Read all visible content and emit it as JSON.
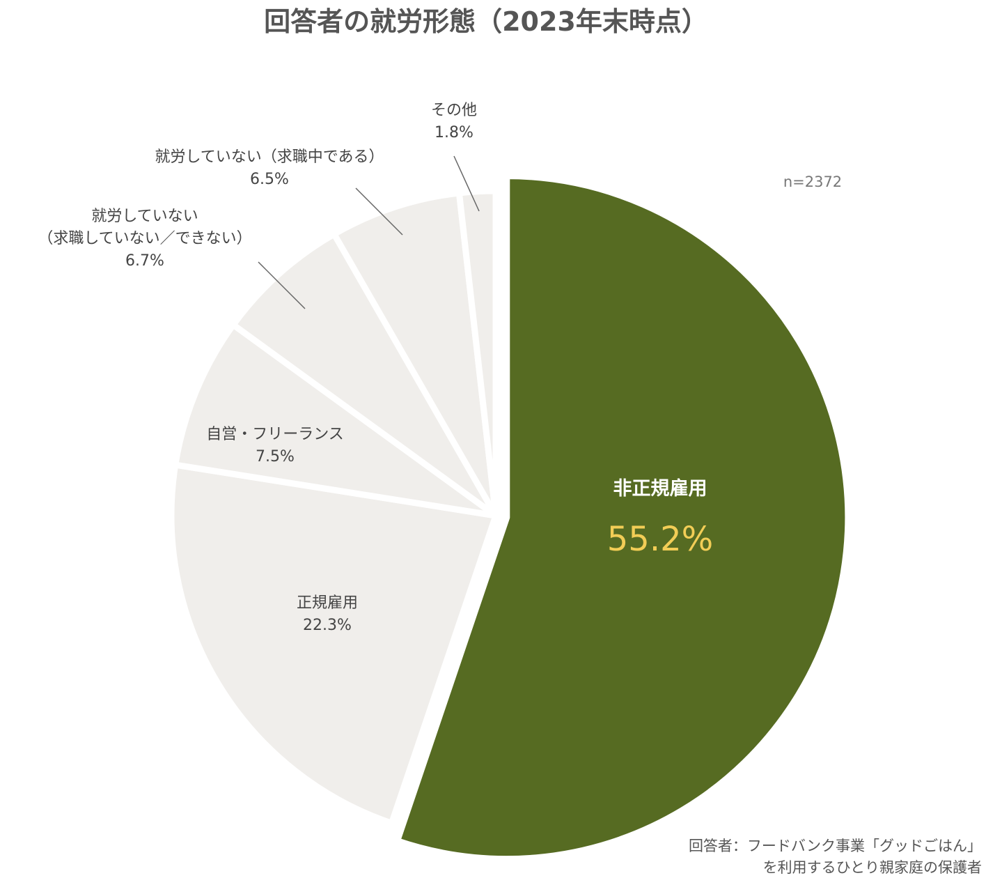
{
  "chart_data": {
    "type": "pie",
    "title": "回答者の就労形態（2023年末時点）",
    "sample_size": "n=2372",
    "start_angle": "12 o'clock, clockwise",
    "slices": [
      {
        "label": "非正規雇用",
        "value": 55.2,
        "value_text": "55.2%",
        "color": "#566b22",
        "highlight": true
      },
      {
        "label": "正規雇用",
        "value": 22.3,
        "value_text": "22.3%",
        "color": "#f0eeeb"
      },
      {
        "label": "自営・フリーランス",
        "value": 7.5,
        "value_text": "7.5%",
        "color": "#f0eeeb"
      },
      {
        "label": "就労していない\n（求職していない／できない）",
        "value": 6.7,
        "value_text": "6.7%",
        "color": "#f0eeeb"
      },
      {
        "label": "就労していない（求職中である）",
        "value": 6.5,
        "value_text": "6.5%",
        "color": "#f0eeeb"
      },
      {
        "label": "その他",
        "value": 1.8,
        "value_text": "1.8%",
        "color": "#f0eeeb"
      }
    ]
  },
  "source": {
    "line1": "回答者：フードバンク事業「グッドごはん」",
    "line2": "を利用するひとり親家庭の保護者"
  }
}
